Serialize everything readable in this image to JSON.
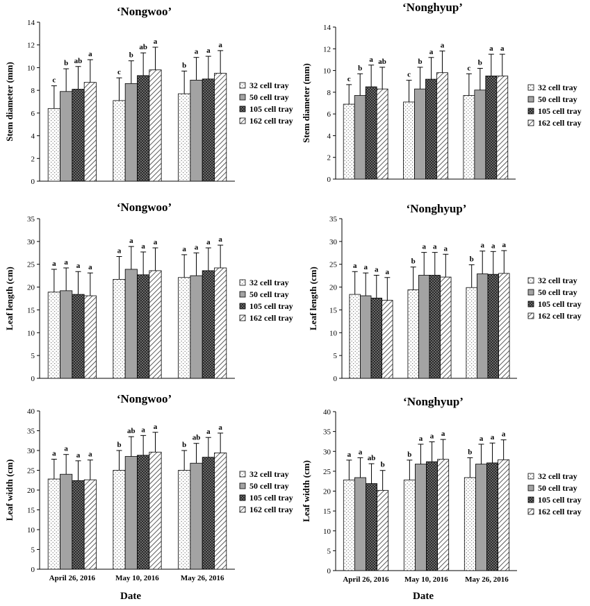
{
  "figure": {
    "x_title_left": "Date",
    "x_title_right": "Date"
  },
  "chart_data": [
    {
      "id": "p1",
      "type": "bar",
      "title": "‘Nongwoo’",
      "ylabel": "Stem diameter (mm)",
      "ylim": [
        0,
        14
      ],
      "yticks": [
        0,
        2,
        4,
        6,
        8,
        10,
        12,
        14
      ],
      "categories": [
        "April 26, 2016",
        "May 10, 2016",
        "May 26, 2016"
      ],
      "show_categories": false,
      "series": [
        {
          "name": "32 cell tray",
          "values": [
            6.4,
            7.1,
            7.7
          ],
          "errors": [
            2.0,
            2.0,
            2.0
          ],
          "letters": [
            "c",
            "c",
            "b"
          ]
        },
        {
          "name": "50 cell tray",
          "values": [
            7.9,
            8.6,
            8.9
          ],
          "errors": [
            2.0,
            2.0,
            2.0
          ],
          "letters": [
            "b",
            "b",
            "a"
          ]
        },
        {
          "name": "105 cell tray",
          "values": [
            8.1,
            9.3,
            9.0
          ],
          "errors": [
            2.0,
            2.0,
            2.0
          ],
          "letters": [
            "ab",
            "ab",
            "a"
          ]
        },
        {
          "name": "162 cell tray",
          "values": [
            8.7,
            9.8,
            9.5
          ],
          "errors": [
            2.0,
            2.0,
            2.0
          ],
          "letters": [
            "a",
            "a",
            "a"
          ]
        }
      ]
    },
    {
      "id": "p2",
      "type": "bar",
      "title": "‘Nonghyup’",
      "ylabel": "Stem diameter (mm)",
      "ylim": [
        0,
        14
      ],
      "yticks": [
        0,
        2,
        4,
        6,
        8,
        10,
        12,
        14
      ],
      "categories": [
        "April 26, 2016",
        "May 10, 2016",
        "May 26, 2016"
      ],
      "show_categories": false,
      "series": [
        {
          "name": "32 cell tray",
          "values": [
            6.9,
            7.1,
            7.7
          ],
          "errors": [
            1.8,
            2.0,
            2.0
          ],
          "letters": [
            "c",
            "c",
            "c"
          ]
        },
        {
          "name": "50 cell tray",
          "values": [
            7.7,
            8.3,
            8.2
          ],
          "errors": [
            2.0,
            2.0,
            2.0
          ],
          "letters": [
            "b",
            "b",
            "b"
          ]
        },
        {
          "name": "105 cell tray",
          "values": [
            8.5,
            9.2,
            9.5
          ],
          "errors": [
            2.0,
            2.0,
            2.0
          ],
          "letters": [
            "a",
            "a",
            "a"
          ]
        },
        {
          "name": "162 cell tray",
          "values": [
            8.3,
            9.8,
            9.5
          ],
          "errors": [
            2.0,
            2.0,
            2.0
          ],
          "letters": [
            "ab",
            "a",
            "a"
          ]
        }
      ]
    },
    {
      "id": "p3",
      "type": "bar",
      "title": "‘Nongwoo’",
      "ylabel": "Leaf length (cm)",
      "ylim": [
        0,
        35
      ],
      "yticks": [
        0,
        5,
        10,
        15,
        20,
        25,
        30,
        35
      ],
      "categories": [
        "April 26, 2016",
        "May 10, 2016",
        "May 26, 2016"
      ],
      "show_categories": false,
      "series": [
        {
          "name": "32 cell tray",
          "values": [
            18.9,
            21.7,
            22.1
          ],
          "errors": [
            5.0,
            5.0,
            5.0
          ],
          "letters": [
            "a",
            "a",
            "a"
          ]
        },
        {
          "name": "50 cell tray",
          "values": [
            19.2,
            23.9,
            22.5
          ],
          "errors": [
            5.0,
            5.0,
            5.0
          ],
          "letters": [
            "a",
            "a",
            "a"
          ]
        },
        {
          "name": "105 cell tray",
          "values": [
            18.4,
            22.7,
            23.6
          ],
          "errors": [
            5.0,
            5.0,
            5.0
          ],
          "letters": [
            "a",
            "a",
            "a"
          ]
        },
        {
          "name": "162 cell tray",
          "values": [
            18.1,
            23.6,
            24.2
          ],
          "errors": [
            5.0,
            5.0,
            5.0
          ],
          "letters": [
            "a",
            "a",
            "a"
          ]
        }
      ]
    },
    {
      "id": "p4",
      "type": "bar",
      "title": "‘Nonghyup’",
      "ylabel": "Leaf length (cm)",
      "ylim": [
        0,
        35
      ],
      "yticks": [
        0,
        5,
        10,
        15,
        20,
        25,
        30,
        35
      ],
      "categories": [
        "April 26, 2016",
        "May 10, 2016",
        "May 26, 2016"
      ],
      "show_categories": false,
      "series": [
        {
          "name": "32 cell tray",
          "values": [
            18.4,
            19.4,
            19.9
          ],
          "errors": [
            5.0,
            5.0,
            5.0
          ],
          "letters": [
            "a",
            "b",
            "b"
          ]
        },
        {
          "name": "50 cell tray",
          "values": [
            18.1,
            22.6,
            22.9
          ],
          "errors": [
            5.0,
            5.0,
            5.0
          ],
          "letters": [
            "a",
            "a",
            "a"
          ]
        },
        {
          "name": "105 cell tray",
          "values": [
            17.6,
            22.6,
            22.8
          ],
          "errors": [
            5.0,
            5.0,
            5.0
          ],
          "letters": [
            "a",
            "a",
            "a"
          ]
        },
        {
          "name": "162 cell tray",
          "values": [
            17.1,
            22.2,
            23.0
          ],
          "errors": [
            5.0,
            5.0,
            5.0
          ],
          "letters": [
            "a",
            "a",
            "a"
          ]
        }
      ]
    },
    {
      "id": "p5",
      "type": "bar",
      "title": "‘Nongwoo’",
      "ylabel": "Leaf width (cm)",
      "ylim": [
        0,
        40
      ],
      "yticks": [
        0,
        5,
        10,
        15,
        20,
        25,
        30,
        35,
        40
      ],
      "categories": [
        "April 26, 2016",
        "May 10, 2016",
        "May 26, 2016"
      ],
      "show_categories": true,
      "series": [
        {
          "name": "32 cell tray",
          "values": [
            22.8,
            25.0,
            25.0
          ],
          "errors": [
            5.0,
            5.0,
            5.0
          ],
          "letters": [
            "a",
            "b",
            "b"
          ]
        },
        {
          "name": "50 cell tray",
          "values": [
            24.0,
            28.5,
            26.8
          ],
          "errors": [
            5.0,
            5.0,
            5.0
          ],
          "letters": [
            "a",
            "ab",
            "ab"
          ]
        },
        {
          "name": "105 cell tray",
          "values": [
            22.4,
            28.8,
            28.3
          ],
          "errors": [
            5.0,
            5.0,
            5.0
          ],
          "letters": [
            "a",
            "a",
            "a"
          ]
        },
        {
          "name": "162 cell tray",
          "values": [
            22.6,
            29.6,
            29.4
          ],
          "errors": [
            5.0,
            5.0,
            5.0
          ],
          "letters": [
            "a",
            "a",
            "a"
          ]
        }
      ]
    },
    {
      "id": "p6",
      "type": "bar",
      "title": "‘Nonghyup’",
      "ylabel": "Leaf width (cm)",
      "ylim": [
        0,
        40
      ],
      "yticks": [
        0,
        5,
        10,
        15,
        20,
        25,
        30,
        35,
        40
      ],
      "categories": [
        "April 26, 2016",
        "May 10, 2016",
        "May 26, 2016"
      ],
      "show_categories": true,
      "series": [
        {
          "name": "32 cell tray",
          "values": [
            22.8,
            22.8,
            23.4
          ],
          "errors": [
            5.0,
            5.0,
            5.0
          ],
          "letters": [
            "a",
            "b",
            "b"
          ]
        },
        {
          "name": "50 cell tray",
          "values": [
            23.4,
            26.8,
            26.8
          ],
          "errors": [
            5.0,
            5.0,
            5.0
          ],
          "letters": [
            "a",
            "a",
            "a"
          ]
        },
        {
          "name": "105 cell tray",
          "values": [
            21.9,
            27.4,
            27.1
          ],
          "errors": [
            5.0,
            5.0,
            5.0
          ],
          "letters": [
            "ab",
            "a",
            "a"
          ]
        },
        {
          "name": "162 cell tray",
          "values": [
            20.2,
            28.0,
            27.9
          ],
          "errors": [
            5.0,
            5.0,
            5.0
          ],
          "letters": [
            "b",
            "a",
            "a"
          ]
        }
      ]
    }
  ]
}
